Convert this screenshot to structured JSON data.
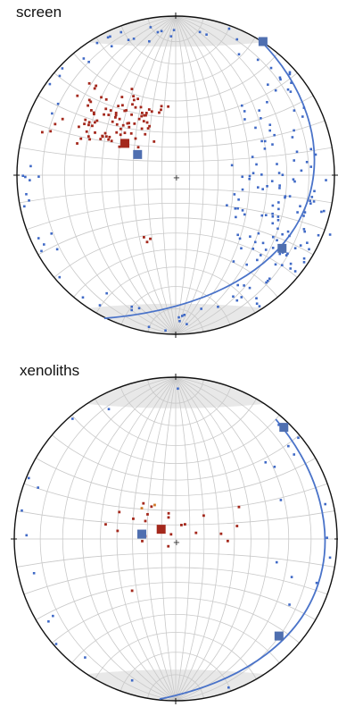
{
  "panels": [
    {
      "title": "screen"
    },
    {
      "title": "xenoliths"
    }
  ],
  "colors": {
    "grid": "#c9c9c9",
    "outline": "#111111",
    "red_poles": "#a4281c",
    "orange_poles": "#d07a2a",
    "blue_poles": "#3f69c6",
    "great_circle": "#4a73c9",
    "mean_red": "#a4281c",
    "mean_blue": "#4f6fb0",
    "center_cross": "#333333",
    "shade": "#d9d9d9"
  },
  "icons": {
    "pole_marker": "small-dot",
    "mean_marker": "square",
    "center": "cross"
  }
}
